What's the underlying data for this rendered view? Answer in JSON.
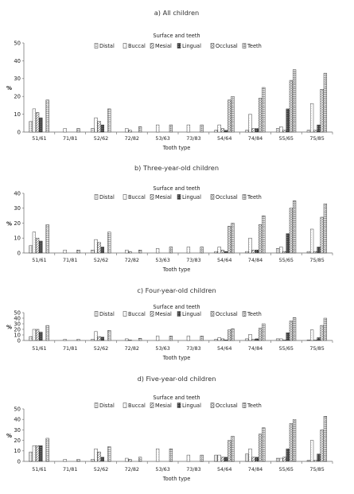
{
  "chart_data": [
    {
      "type": "bar",
      "title": "a) All children",
      "legend_title": "Surface and teeth",
      "xlabel": "Tooth type",
      "ylabel": "%",
      "ylim": [
        0,
        50
      ],
      "yticks": [
        "0",
        "10",
        "20",
        "30",
        "40",
        "50"
      ],
      "grid": false,
      "legend_position": "top",
      "categories": [
        "51/61",
        "71/81",
        "52/62",
        "72/82",
        "53/63",
        "73/83",
        "54/64",
        "74/84",
        "55/65",
        "75/85"
      ],
      "series": [
        {
          "name": "Distal",
          "values": [
            6,
            0,
            2,
            0,
            0,
            0,
            1,
            1,
            2,
            1
          ]
        },
        {
          "name": "Buccal",
          "values": [
            13,
            2,
            8,
            2,
            4,
            4,
            4,
            10,
            3,
            16
          ]
        },
        {
          "name": "Mesial",
          "values": [
            11,
            0,
            6,
            1,
            0,
            0,
            2,
            2,
            1,
            1
          ]
        },
        {
          "name": "Lingual",
          "values": [
            8,
            0,
            4,
            0,
            0,
            0,
            1,
            2,
            13,
            4
          ]
        },
        {
          "name": "Occlusal",
          "values": [
            0,
            0,
            0,
            0,
            0,
            0,
            18,
            19,
            29,
            24
          ]
        },
        {
          "name": "Teeth",
          "values": [
            18,
            2,
            13,
            3,
            4,
            4,
            20,
            25,
            35,
            33
          ]
        }
      ]
    },
    {
      "type": "bar",
      "title": "b) Three-year-old children",
      "legend_title": "Surface and teeth",
      "xlabel": "Tooth type",
      "ylabel": "%",
      "ylim": [
        0,
        40
      ],
      "yticks": [
        "0",
        "10",
        "20",
        "30",
        "40"
      ],
      "grid": false,
      "legend_position": "top",
      "categories": [
        "51/61",
        "71/81",
        "52/62",
        "72/82",
        "53/63",
        "73/83",
        "54/64",
        "74/84",
        "55/65",
        "75/85"
      ],
      "series": [
        {
          "name": "Distal",
          "values": [
            5,
            0,
            2,
            0,
            0,
            0,
            1,
            1,
            3,
            1
          ]
        },
        {
          "name": "Buccal",
          "values": [
            14,
            2,
            9,
            2,
            3,
            4,
            4,
            10,
            4,
            16
          ]
        },
        {
          "name": "Mesial",
          "values": [
            10,
            0,
            7,
            1,
            0,
            0,
            2,
            2,
            1,
            1
          ]
        },
        {
          "name": "Lingual",
          "values": [
            8,
            0,
            4,
            0,
            0,
            0,
            1,
            2,
            13,
            4
          ]
        },
        {
          "name": "Occlusal",
          "values": [
            0,
            0,
            0,
            0,
            0,
            0,
            18,
            19,
            30,
            24
          ]
        },
        {
          "name": "Teeth",
          "values": [
            19,
            2,
            14,
            2,
            4,
            4,
            20,
            25,
            35,
            33
          ]
        }
      ]
    },
    {
      "type": "bar",
      "title": "c) Four-year-old children",
      "legend_title": "Surface and teeth",
      "xlabel": "Tooth type",
      "ylabel": "%",
      "ylim": [
        0,
        50
      ],
      "yticks": [
        "0",
        "10",
        "20",
        "30",
        "40",
        "50"
      ],
      "grid": false,
      "legend_position": "top",
      "categories": [
        "51/61",
        "71/81",
        "52/62",
        "72/82",
        "53/63",
        "73/83",
        "54/64",
        "74/84",
        "55/65",
        "75/85"
      ],
      "series": [
        {
          "name": "Distal",
          "values": [
            7,
            0,
            2,
            0,
            0,
            0,
            2,
            3,
            3,
            1
          ]
        },
        {
          "name": "Buccal",
          "values": [
            20,
            2,
            16,
            3,
            8,
            8,
            5,
            11,
            3,
            19
          ]
        },
        {
          "name": "Mesial",
          "values": [
            20,
            0,
            7,
            1,
            0,
            0,
            3,
            2,
            1,
            1
          ]
        },
        {
          "name": "Lingual",
          "values": [
            15,
            0,
            6,
            0,
            0,
            0,
            1,
            3,
            14,
            5
          ]
        },
        {
          "name": "Occlusal",
          "values": [
            0,
            0,
            0,
            0,
            0,
            0,
            19,
            22,
            35,
            27
          ]
        },
        {
          "name": "Teeth",
          "values": [
            27,
            2,
            18,
            4,
            8,
            8,
            21,
            30,
            41,
            40
          ]
        }
      ]
    },
    {
      "type": "bar",
      "title": "d) Five-year-old children",
      "legend_title": "Surface and teeth",
      "xlabel": "Tooth type",
      "ylabel": "%",
      "ylim": [
        0,
        50
      ],
      "yticks": [
        "0",
        "10",
        "20",
        "30",
        "40",
        "50"
      ],
      "grid": false,
      "legend_position": "top",
      "categories": [
        "51/61",
        "71/81",
        "52/62",
        "72/82",
        "53/63",
        "73/83",
        "54/64",
        "74/84",
        "55/65",
        "75/85"
      ],
      "series": [
        {
          "name": "Distal",
          "values": [
            9,
            0,
            2,
            0,
            0,
            0,
            6,
            7,
            3,
            1
          ]
        },
        {
          "name": "Buccal",
          "values": [
            15,
            2,
            12,
            3,
            12,
            6,
            6,
            12,
            3,
            20
          ]
        },
        {
          "name": "Mesial",
          "values": [
            15,
            0,
            9,
            2,
            0,
            0,
            4,
            4,
            4,
            1
          ]
        },
        {
          "name": "Lingual",
          "values": [
            15,
            0,
            4,
            0,
            0,
            0,
            4,
            4,
            12,
            7
          ]
        },
        {
          "name": "Occlusal",
          "values": [
            0,
            0,
            0,
            0,
            0,
            0,
            20,
            26,
            36,
            30
          ]
        },
        {
          "name": "Teeth",
          "values": [
            22,
            2,
            14,
            4,
            12,
            6,
            24,
            32,
            40,
            43
          ]
        }
      ]
    }
  ]
}
